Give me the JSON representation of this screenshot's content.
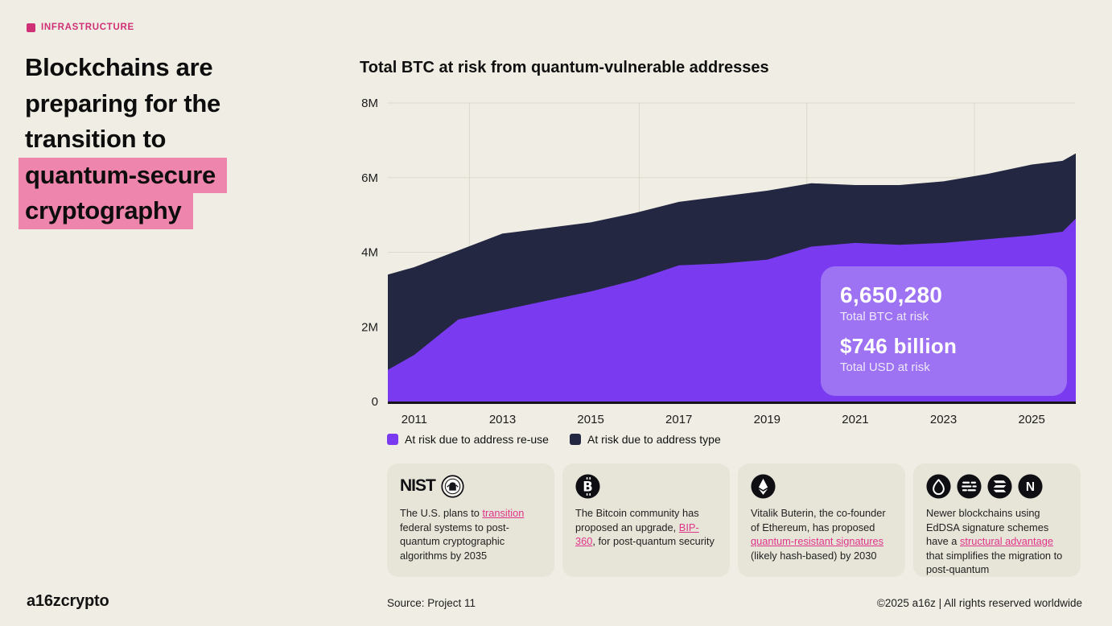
{
  "page": {
    "tag": "INFRASTRUCTURE",
    "heading_lines": [
      {
        "text": "Blockchains are",
        "highlight": false
      },
      {
        "text": "preparing for the",
        "highlight": false
      },
      {
        "text": "transition to",
        "highlight": false
      },
      {
        "text": "quantum-secure",
        "highlight": true
      },
      {
        "text": "cryptography",
        "highlight": true
      }
    ]
  },
  "chart_data": {
    "type": "area",
    "stacked": true,
    "title": "Total BTC at risk from quantum-vulnerable addresses",
    "units": "BTC (millions)",
    "x": [
      2010.4,
      2011,
      2012,
      2013,
      2014,
      2015,
      2016,
      2017,
      2018,
      2019,
      2020,
      2021,
      2022,
      2023,
      2024,
      2025,
      2025.7,
      2026
    ],
    "series": [
      {
        "name": "At risk due to address re-use",
        "color": "#7a3bf0",
        "values": [
          0.85,
          1.25,
          2.2,
          2.45,
          2.7,
          2.95,
          3.25,
          3.65,
          3.7,
          3.8,
          4.15,
          4.25,
          4.2,
          4.25,
          4.35,
          4.45,
          4.55,
          4.9
        ]
      },
      {
        "name": "At risk due to address type",
        "color": "#232741",
        "values": [
          2.55,
          2.35,
          1.85,
          2.05,
          1.95,
          1.85,
          1.8,
          1.7,
          1.8,
          1.85,
          1.7,
          1.55,
          1.6,
          1.65,
          1.75,
          1.9,
          1.9,
          1.75
        ]
      }
    ],
    "ylim": [
      0,
      8
    ],
    "y_ticks": [
      0,
      2,
      4,
      6,
      8
    ],
    "y_tick_labels": [
      "0",
      "2M",
      "4M",
      "6M",
      "8M"
    ],
    "x_ticks": [
      2011,
      2013,
      2015,
      2017,
      2019,
      2021,
      2023,
      2025
    ],
    "x_tick_labels": [
      "2011",
      "2013",
      "2015",
      "2017",
      "2019",
      "2021",
      "2023",
      "2025"
    ],
    "grid": true,
    "legend_position": "bottom"
  },
  "callout": {
    "btc_value": "6,650,280",
    "btc_label": "Total BTC at risk",
    "usd_value": "$746 billion",
    "usd_label": "Total USD at risk"
  },
  "legend": [
    {
      "label": "At risk due to address re-use",
      "color": "#7a3bf0"
    },
    {
      "label": "At risk due to address type",
      "color": "#232741"
    }
  ],
  "cards": [
    {
      "icons": [
        {
          "name": "nist-wordmark",
          "text": "NIST"
        },
        {
          "name": "nist-seal"
        }
      ],
      "segments": [
        {
          "t": "The U.S. plans to "
        },
        {
          "t": "transition",
          "link": true
        },
        {
          "t": " federal systems to post-quantum cryptographic algorithms by 2035"
        }
      ]
    },
    {
      "icons": [
        {
          "name": "bitcoin",
          "text": "B"
        }
      ],
      "segments": [
        {
          "t": "The Bitcoin community has proposed an upgrade, "
        },
        {
          "t": "BIP-360",
          "link": true
        },
        {
          "t": ", for post-quantum security"
        }
      ]
    },
    {
      "icons": [
        {
          "name": "ethereum"
        }
      ],
      "segments": [
        {
          "t": "Vitalik Buterin, the co-founder of Ethereum, has proposed "
        },
        {
          "t": "quantum-resistant signatures",
          "link": true
        },
        {
          "t": " (likely hash-based) by 2030"
        }
      ]
    },
    {
      "icons": [
        {
          "name": "sui"
        },
        {
          "name": "aptos"
        },
        {
          "name": "solana"
        },
        {
          "name": "near",
          "text": "N"
        }
      ],
      "segments": [
        {
          "t": "Newer blockchains using EdDSA signature schemes have a "
        },
        {
          "t": "structural advantage",
          "link": true
        },
        {
          "t": " that simplifies the migration to post-quantum"
        }
      ]
    }
  ],
  "footer": {
    "logo": "a16zcrypto",
    "source": "Source: Project 11",
    "copyright": "©2025 a16z | All rights reserved worldwide"
  },
  "colors": {
    "background": "#f0eee4",
    "card_background": "#e7e4d8",
    "purple": "#7a3bf0",
    "navy": "#232741",
    "pink_highlight": "#ee85ac",
    "pink_accent": "#cf3076",
    "link_pink": "#e0348a",
    "callout_background": "#9d73f3",
    "gridline": "#dcd8cc",
    "axis_line": "#141419"
  }
}
